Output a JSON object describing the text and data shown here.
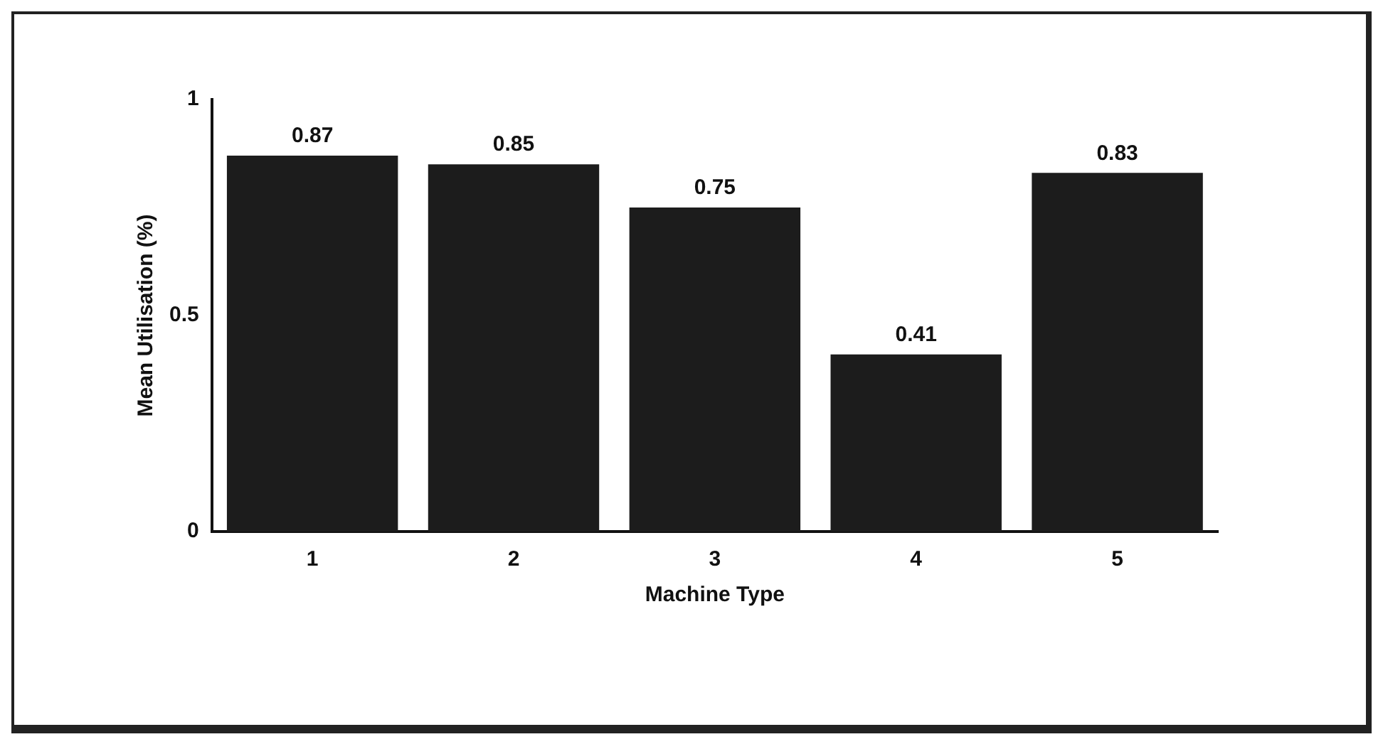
{
  "chart_data": {
    "type": "bar",
    "xlabel": "Machine Type",
    "ylabel": "Mean Utilisation (%)",
    "categories": [
      "1",
      "2",
      "3",
      "4",
      "5"
    ],
    "values": [
      0.87,
      0.85,
      0.75,
      0.41,
      0.83
    ],
    "color": "#1c1c1c",
    "ylim": [
      0,
      1
    ],
    "yticks": [
      0,
      0.5,
      1
    ],
    "grid": false,
    "legend": false,
    "data_labels": true
  }
}
